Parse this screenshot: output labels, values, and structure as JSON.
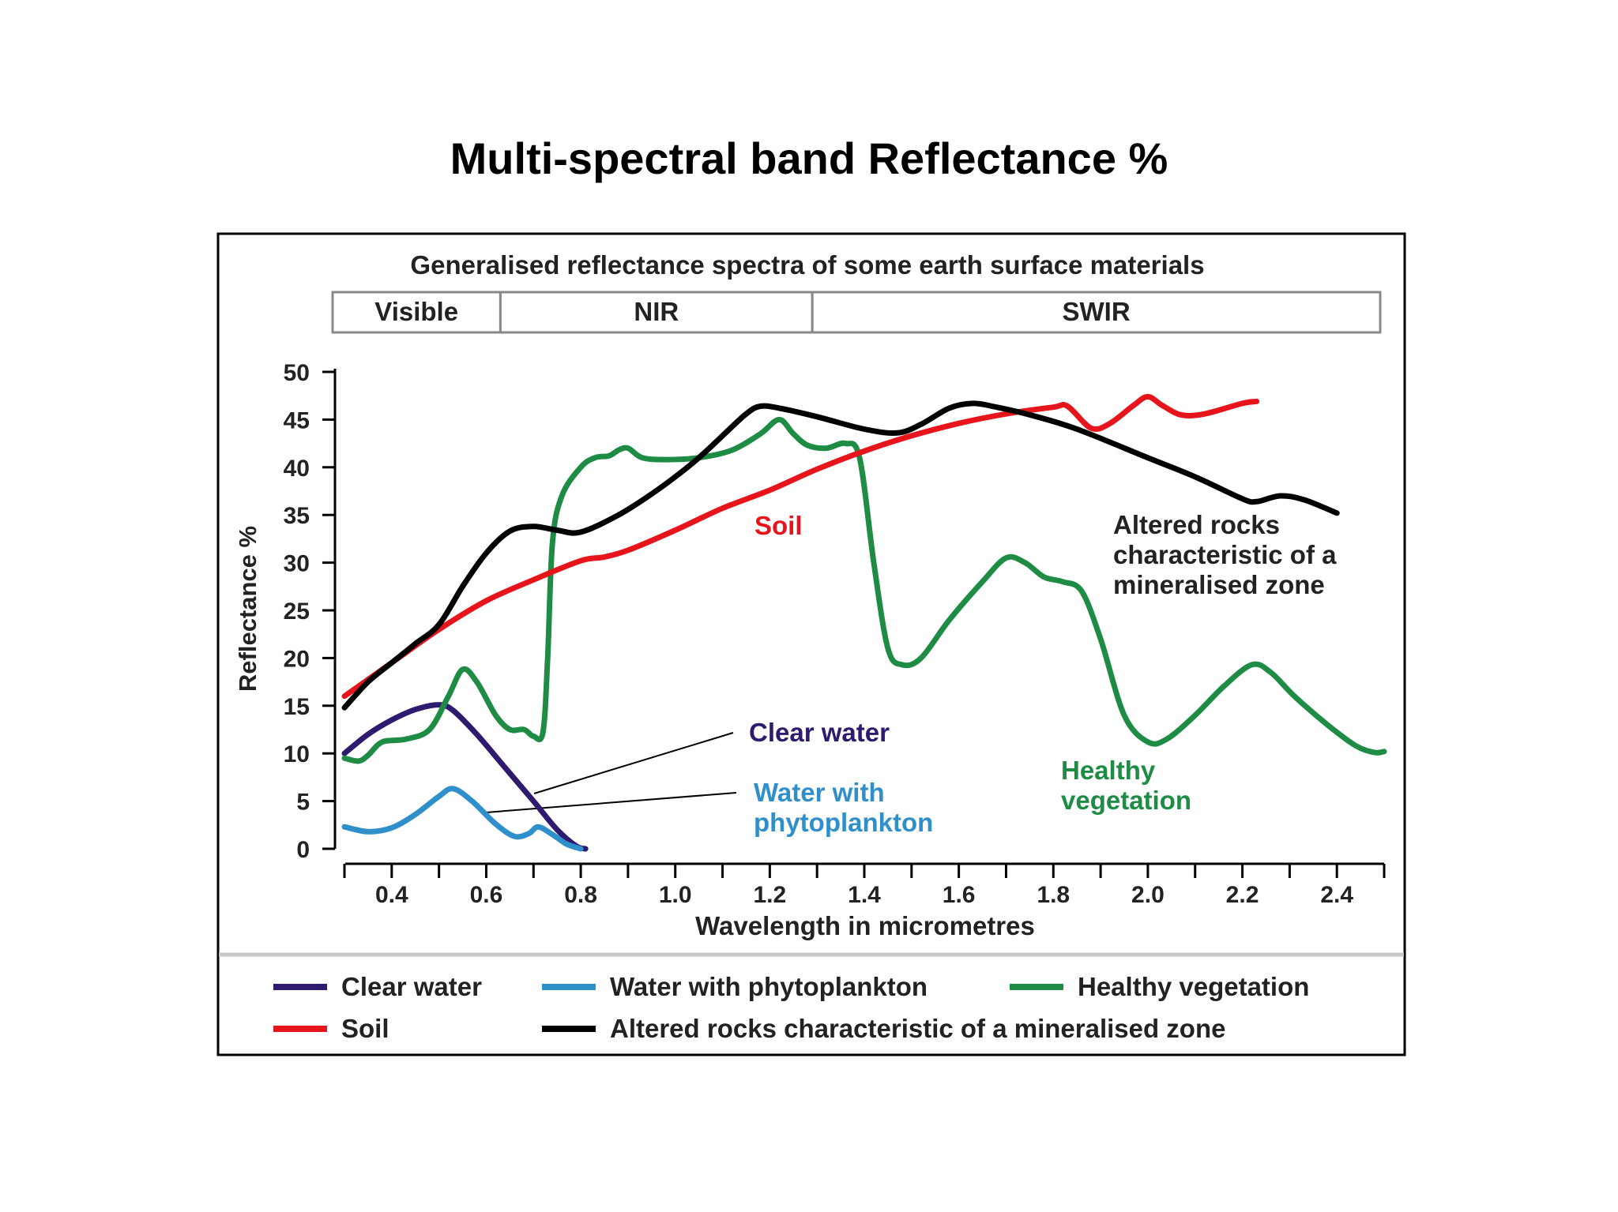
{
  "slide": {
    "title": "Multi-spectral band Reflectance %"
  },
  "chart_data": {
    "type": "line",
    "title": "Generalised reflectance spectra of some earth surface materials",
    "xlabel": "Wavelength in micrometres",
    "ylabel": "Reflectance %",
    "xlim": [
      0.3,
      2.5
    ],
    "ylim": [
      0,
      50
    ],
    "x_ticks": [
      "0.4",
      "0.6",
      "0.8",
      "1.0",
      "1.2",
      "1.4",
      "1.6",
      "1.8",
      "2.0",
      "2.2",
      "2.4"
    ],
    "y_ticks": [
      "0",
      "5",
      "10",
      "15",
      "20",
      "25",
      "30",
      "35",
      "40",
      "45",
      "50"
    ],
    "grid": false,
    "legend_position": "bottom",
    "bands": [
      {
        "label": "Visible",
        "range": [
          0.3,
          0.63
        ]
      },
      {
        "label": "NIR",
        "range": [
          0.63,
          1.29
        ]
      },
      {
        "label": "SWIR",
        "range": [
          1.29,
          2.5
        ]
      }
    ],
    "series": [
      {
        "name": "Clear water",
        "color": "#2e1a6e",
        "points": [
          [
            0.3,
            10
          ],
          [
            0.35,
            12
          ],
          [
            0.4,
            13.5
          ],
          [
            0.45,
            14.6
          ],
          [
            0.5,
            15.1
          ],
          [
            0.53,
            14.5
          ],
          [
            0.58,
            12
          ],
          [
            0.64,
            8.5
          ],
          [
            0.7,
            5
          ],
          [
            0.75,
            2
          ],
          [
            0.79,
            0.3
          ],
          [
            0.81,
            0
          ]
        ]
      },
      {
        "name": "Water with phytoplankton",
        "color": "#2f8fcb",
        "points": [
          [
            0.3,
            2.3
          ],
          [
            0.35,
            1.8
          ],
          [
            0.4,
            2.2
          ],
          [
            0.45,
            3.6
          ],
          [
            0.5,
            5.5
          ],
          [
            0.53,
            6.3
          ],
          [
            0.57,
            5
          ],
          [
            0.62,
            2.6
          ],
          [
            0.66,
            1.3
          ],
          [
            0.69,
            1.6
          ],
          [
            0.71,
            2.3
          ],
          [
            0.74,
            1.5
          ],
          [
            0.77,
            0.5
          ],
          [
            0.8,
            0
          ]
        ]
      },
      {
        "name": "Healthy vegetation",
        "color": "#1e8c45",
        "points": [
          [
            0.3,
            9.5
          ],
          [
            0.33,
            9.2
          ],
          [
            0.35,
            9.8
          ],
          [
            0.38,
            11.2
          ],
          [
            0.43,
            11.5
          ],
          [
            0.48,
            12.5
          ],
          [
            0.52,
            16
          ],
          [
            0.55,
            18.8
          ],
          [
            0.58,
            17.5
          ],
          [
            0.62,
            14
          ],
          [
            0.65,
            12.5
          ],
          [
            0.68,
            12.5
          ],
          [
            0.7,
            11.8
          ],
          [
            0.72,
            12.2
          ],
          [
            0.73,
            20
          ],
          [
            0.74,
            32
          ],
          [
            0.76,
            37
          ],
          [
            0.8,
            40
          ],
          [
            0.83,
            41
          ],
          [
            0.86,
            41.2
          ],
          [
            0.88,
            41.8
          ],
          [
            0.9,
            42
          ],
          [
            0.93,
            41
          ],
          [
            0.98,
            40.8
          ],
          [
            1.05,
            41
          ],
          [
            1.12,
            41.8
          ],
          [
            1.18,
            43.5
          ],
          [
            1.22,
            45
          ],
          [
            1.25,
            43.5
          ],
          [
            1.28,
            42.3
          ],
          [
            1.32,
            42
          ],
          [
            1.36,
            42.5
          ],
          [
            1.39,
            41
          ],
          [
            1.42,
            30
          ],
          [
            1.45,
            21
          ],
          [
            1.48,
            19.3
          ],
          [
            1.52,
            20
          ],
          [
            1.58,
            24
          ],
          [
            1.65,
            28
          ],
          [
            1.7,
            30.5
          ],
          [
            1.74,
            30
          ],
          [
            1.78,
            28.5
          ],
          [
            1.82,
            28
          ],
          [
            1.86,
            27
          ],
          [
            1.9,
            22
          ],
          [
            1.95,
            14
          ],
          [
            2.0,
            11.2
          ],
          [
            2.04,
            11.5
          ],
          [
            2.1,
            14
          ],
          [
            2.16,
            17
          ],
          [
            2.22,
            19.3
          ],
          [
            2.26,
            18.5
          ],
          [
            2.31,
            16
          ],
          [
            2.38,
            13
          ],
          [
            2.44,
            10.8
          ],
          [
            2.48,
            10.1
          ],
          [
            2.5,
            10.2
          ]
        ]
      },
      {
        "name": "Soil",
        "color": "#e8141c",
        "points": [
          [
            0.3,
            16
          ],
          [
            0.4,
            19.5
          ],
          [
            0.5,
            23
          ],
          [
            0.6,
            26
          ],
          [
            0.7,
            28.2
          ],
          [
            0.8,
            30.2
          ],
          [
            0.85,
            30.6
          ],
          [
            0.9,
            31.3
          ],
          [
            1.0,
            33.4
          ],
          [
            1.1,
            35.7
          ],
          [
            1.2,
            37.6
          ],
          [
            1.3,
            39.8
          ],
          [
            1.4,
            41.7
          ],
          [
            1.5,
            43.3
          ],
          [
            1.6,
            44.6
          ],
          [
            1.7,
            45.6
          ],
          [
            1.8,
            46.3
          ],
          [
            1.83,
            46.4
          ],
          [
            1.88,
            44.1
          ],
          [
            1.92,
            44.6
          ],
          [
            1.97,
            46.5
          ],
          [
            2.0,
            47.4
          ],
          [
            2.03,
            46.5
          ],
          [
            2.07,
            45.5
          ],
          [
            2.12,
            45.6
          ],
          [
            2.2,
            46.7
          ],
          [
            2.23,
            46.9
          ]
        ]
      },
      {
        "name": "Altered rocks characteristic of a mineralised zone",
        "color": "#000000",
        "points": [
          [
            0.3,
            14.8
          ],
          [
            0.35,
            17.5
          ],
          [
            0.4,
            19.5
          ],
          [
            0.45,
            21.5
          ],
          [
            0.5,
            23.5
          ],
          [
            0.55,
            27.5
          ],
          [
            0.6,
            31
          ],
          [
            0.65,
            33.3
          ],
          [
            0.7,
            33.8
          ],
          [
            0.75,
            33.4
          ],
          [
            0.8,
            33.2
          ],
          [
            0.88,
            35
          ],
          [
            0.95,
            37.2
          ],
          [
            1.0,
            39
          ],
          [
            1.05,
            41
          ],
          [
            1.1,
            43.3
          ],
          [
            1.15,
            45.6
          ],
          [
            1.18,
            46.4
          ],
          [
            1.22,
            46.2
          ],
          [
            1.3,
            45.3
          ],
          [
            1.4,
            44
          ],
          [
            1.47,
            43.6
          ],
          [
            1.52,
            44.5
          ],
          [
            1.58,
            46.2
          ],
          [
            1.63,
            46.7
          ],
          [
            1.68,
            46.3
          ],
          [
            1.75,
            45.5
          ],
          [
            1.85,
            44
          ],
          [
            2.0,
            41
          ],
          [
            2.1,
            39
          ],
          [
            2.2,
            36.7
          ],
          [
            2.23,
            36.4
          ],
          [
            2.28,
            37
          ],
          [
            2.33,
            36.6
          ],
          [
            2.4,
            35.2
          ]
        ]
      }
    ],
    "annotations": [
      {
        "id": "soil",
        "text": "Soil"
      },
      {
        "id": "rocks",
        "lines": [
          "Altered rocks",
          "characteristic of a",
          "mineralised zone"
        ]
      },
      {
        "id": "clear-water",
        "text": "Clear water"
      },
      {
        "id": "phyto",
        "lines": [
          "Water with",
          "phytoplankton"
        ]
      },
      {
        "id": "veg",
        "lines": [
          "Healthy",
          "vegetation"
        ]
      }
    ],
    "legend": [
      {
        "name": "Clear water",
        "color": "#2e1a6e"
      },
      {
        "name": "Water with phytoplankton",
        "color": "#2f8fcb"
      },
      {
        "name": "Healthy vegetation",
        "color": "#1e8c45"
      },
      {
        "name": "Soil",
        "color": "#e8141c"
      },
      {
        "name": "Altered rocks characteristic of a mineralised zone",
        "color": "#000000"
      }
    ]
  }
}
